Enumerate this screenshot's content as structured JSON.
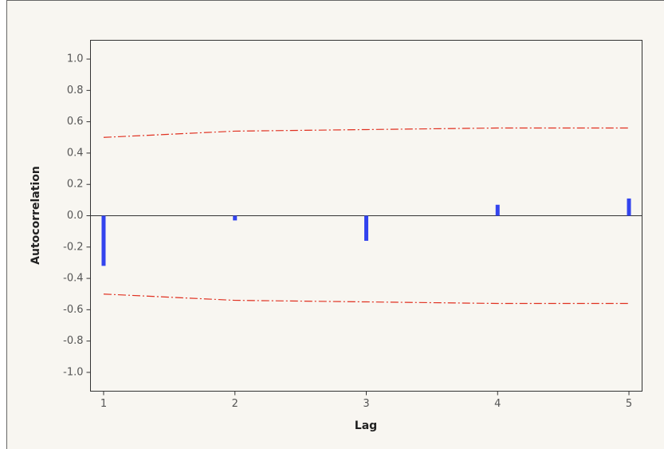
{
  "chart_data": {
    "type": "acf",
    "x_label": "Lag",
    "y_label": "Autocorrelation",
    "x": [
      1,
      2,
      3,
      4,
      5
    ],
    "values": [
      -0.32,
      -0.03,
      -0.16,
      0.07,
      0.11
    ],
    "upper_limits": [
      0.5,
      0.54,
      0.55,
      0.56,
      0.56
    ],
    "lower_limits": [
      -0.5,
      -0.54,
      -0.55,
      -0.56,
      -0.56
    ],
    "color": "#3344ee",
    "limit_color": "#e03020",
    "xlim": [
      0.9,
      5.1
    ],
    "ylim": [
      -1.12,
      1.12
    ],
    "xticks": [
      1,
      2,
      3,
      4,
      5
    ],
    "yticks": [
      {
        "value": 1.0,
        "label": "1.0"
      },
      {
        "value": 0.8,
        "label": "0.8"
      },
      {
        "value": 0.6,
        "label": "0.6"
      },
      {
        "value": 0.4,
        "label": "0.4"
      },
      {
        "value": 0.2,
        "label": "0.2"
      },
      {
        "value": 0.0,
        "label": "0.0"
      },
      {
        "value": -0.2,
        "label": "-0.2"
      },
      {
        "value": -0.4,
        "label": "-0.4"
      },
      {
        "value": -0.6,
        "label": "-0.6"
      },
      {
        "value": -0.8,
        "label": "-0.8"
      },
      {
        "value": -1.0,
        "label": "-1.0"
      }
    ]
  }
}
